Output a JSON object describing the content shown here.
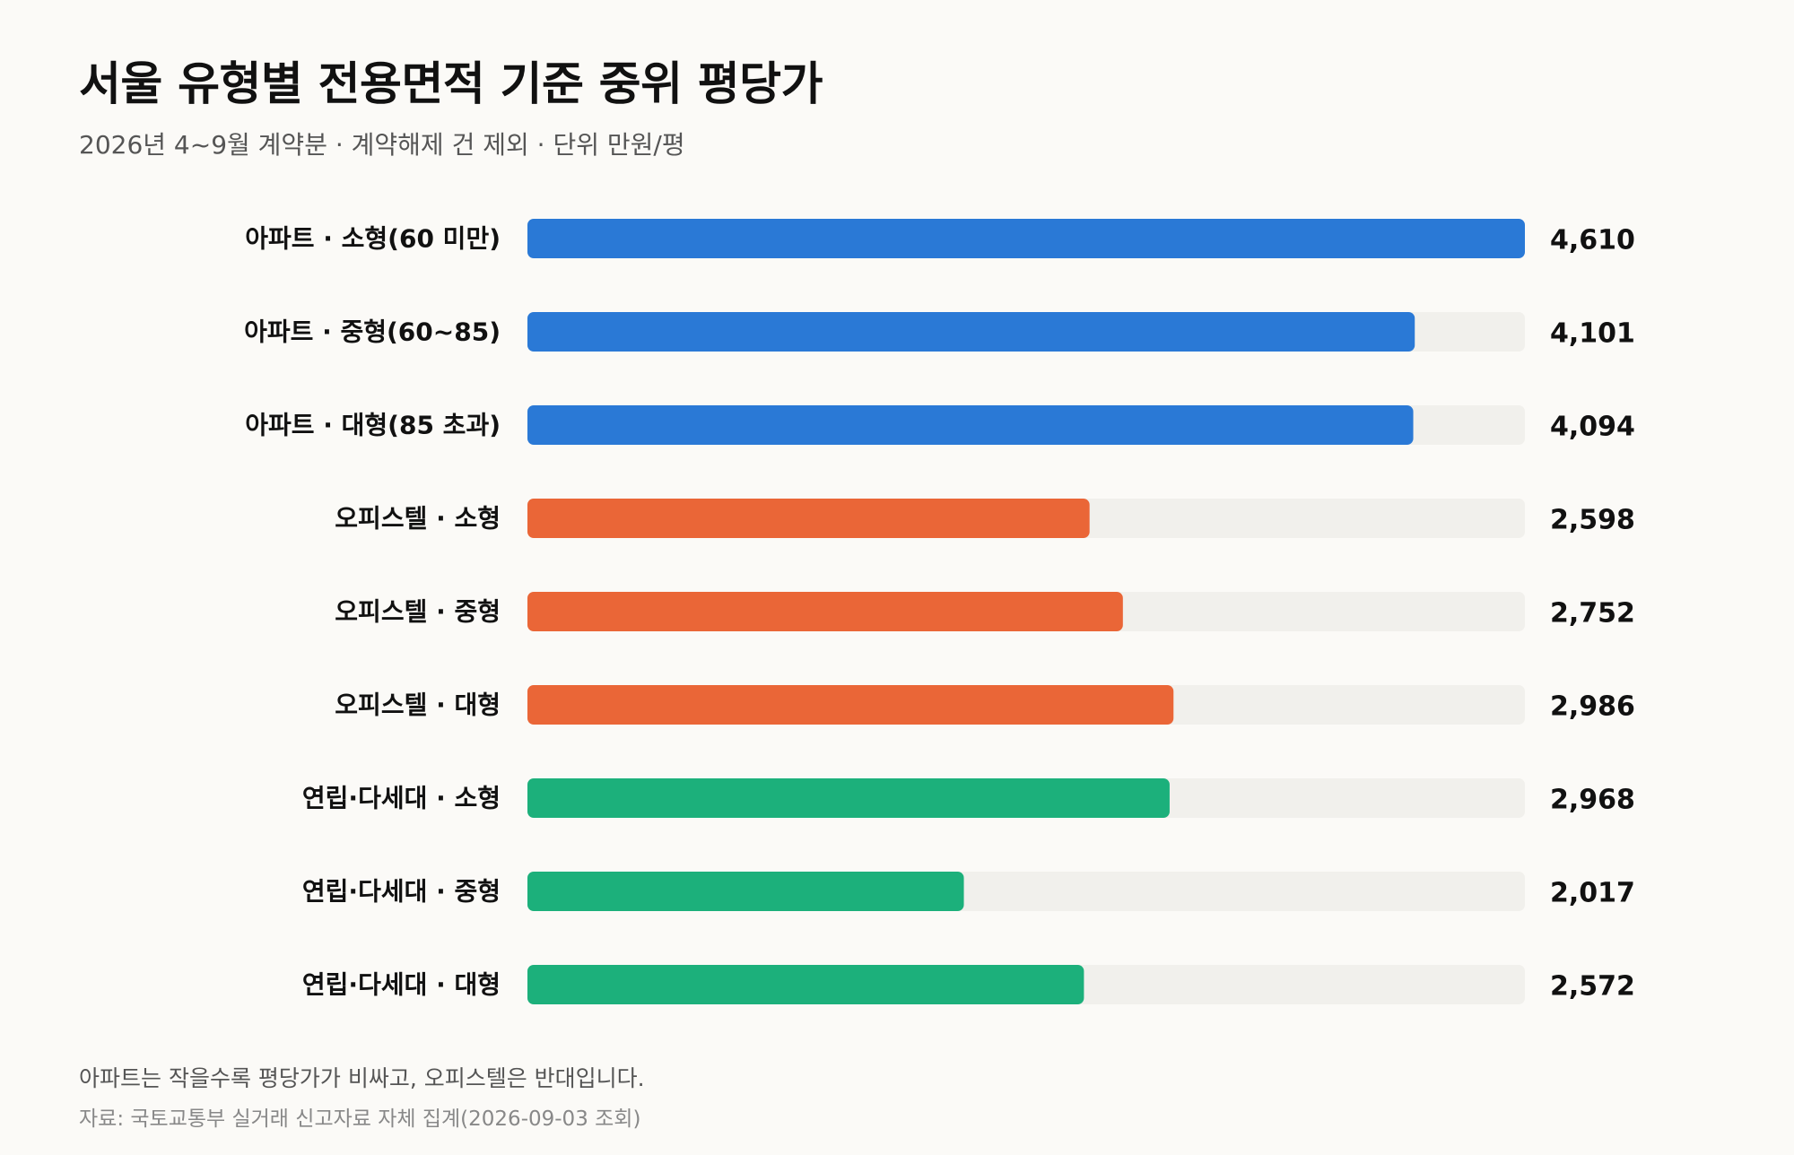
{
  "header": {
    "title": "서울 유형별 전용면적 기준 중위 평당가",
    "subtitle": "2026년 4~9월 계약분 · 계약해제 건 제외 · 단위 만원/평"
  },
  "footer": {
    "note": "아파트는 작을수록 평당가가 비싸고, 오피스텔은 반대입니다.",
    "source": "자료: 국토교통부 실거래 신고자료 자체 집계(2026-09-03 조회)"
  },
  "colors": {
    "apartment": "#2a79d6",
    "officetel": "#ea6637",
    "multiplex": "#1cb07b",
    "track": "#f1f0ec"
  },
  "chart_data": {
    "type": "bar",
    "orientation": "horizontal",
    "title": "서울 유형별 전용면적 기준 중위 평당가",
    "subtitle": "2026년 4~9월 계약분 · 계약해제 건 제외 · 단위 만원/평",
    "unit": "만원/평",
    "xlim": [
      0,
      4610
    ],
    "grid": false,
    "legend": "none",
    "categories": [
      "아파트 · 소형(60 미만)",
      "아파트 · 중형(60~85)",
      "아파트 · 대형(85 초과)",
      "오피스텔 · 소형",
      "오피스텔 · 중형",
      "오피스텔 · 대형",
      "연립·다세대 · 소형",
      "연립·다세대 · 중형",
      "연립·다세대 · 대형"
    ],
    "values": [
      4610,
      4101,
      4094,
      2598,
      2752,
      2986,
      2968,
      2017,
      2572
    ],
    "value_labels": [
      "4,610",
      "4,101",
      "4,094",
      "2,598",
      "2,752",
      "2,986",
      "2,968",
      "2,017",
      "2,572"
    ],
    "groups": [
      "apartment",
      "apartment",
      "apartment",
      "officetel",
      "officetel",
      "officetel",
      "multiplex",
      "multiplex",
      "multiplex"
    ]
  }
}
